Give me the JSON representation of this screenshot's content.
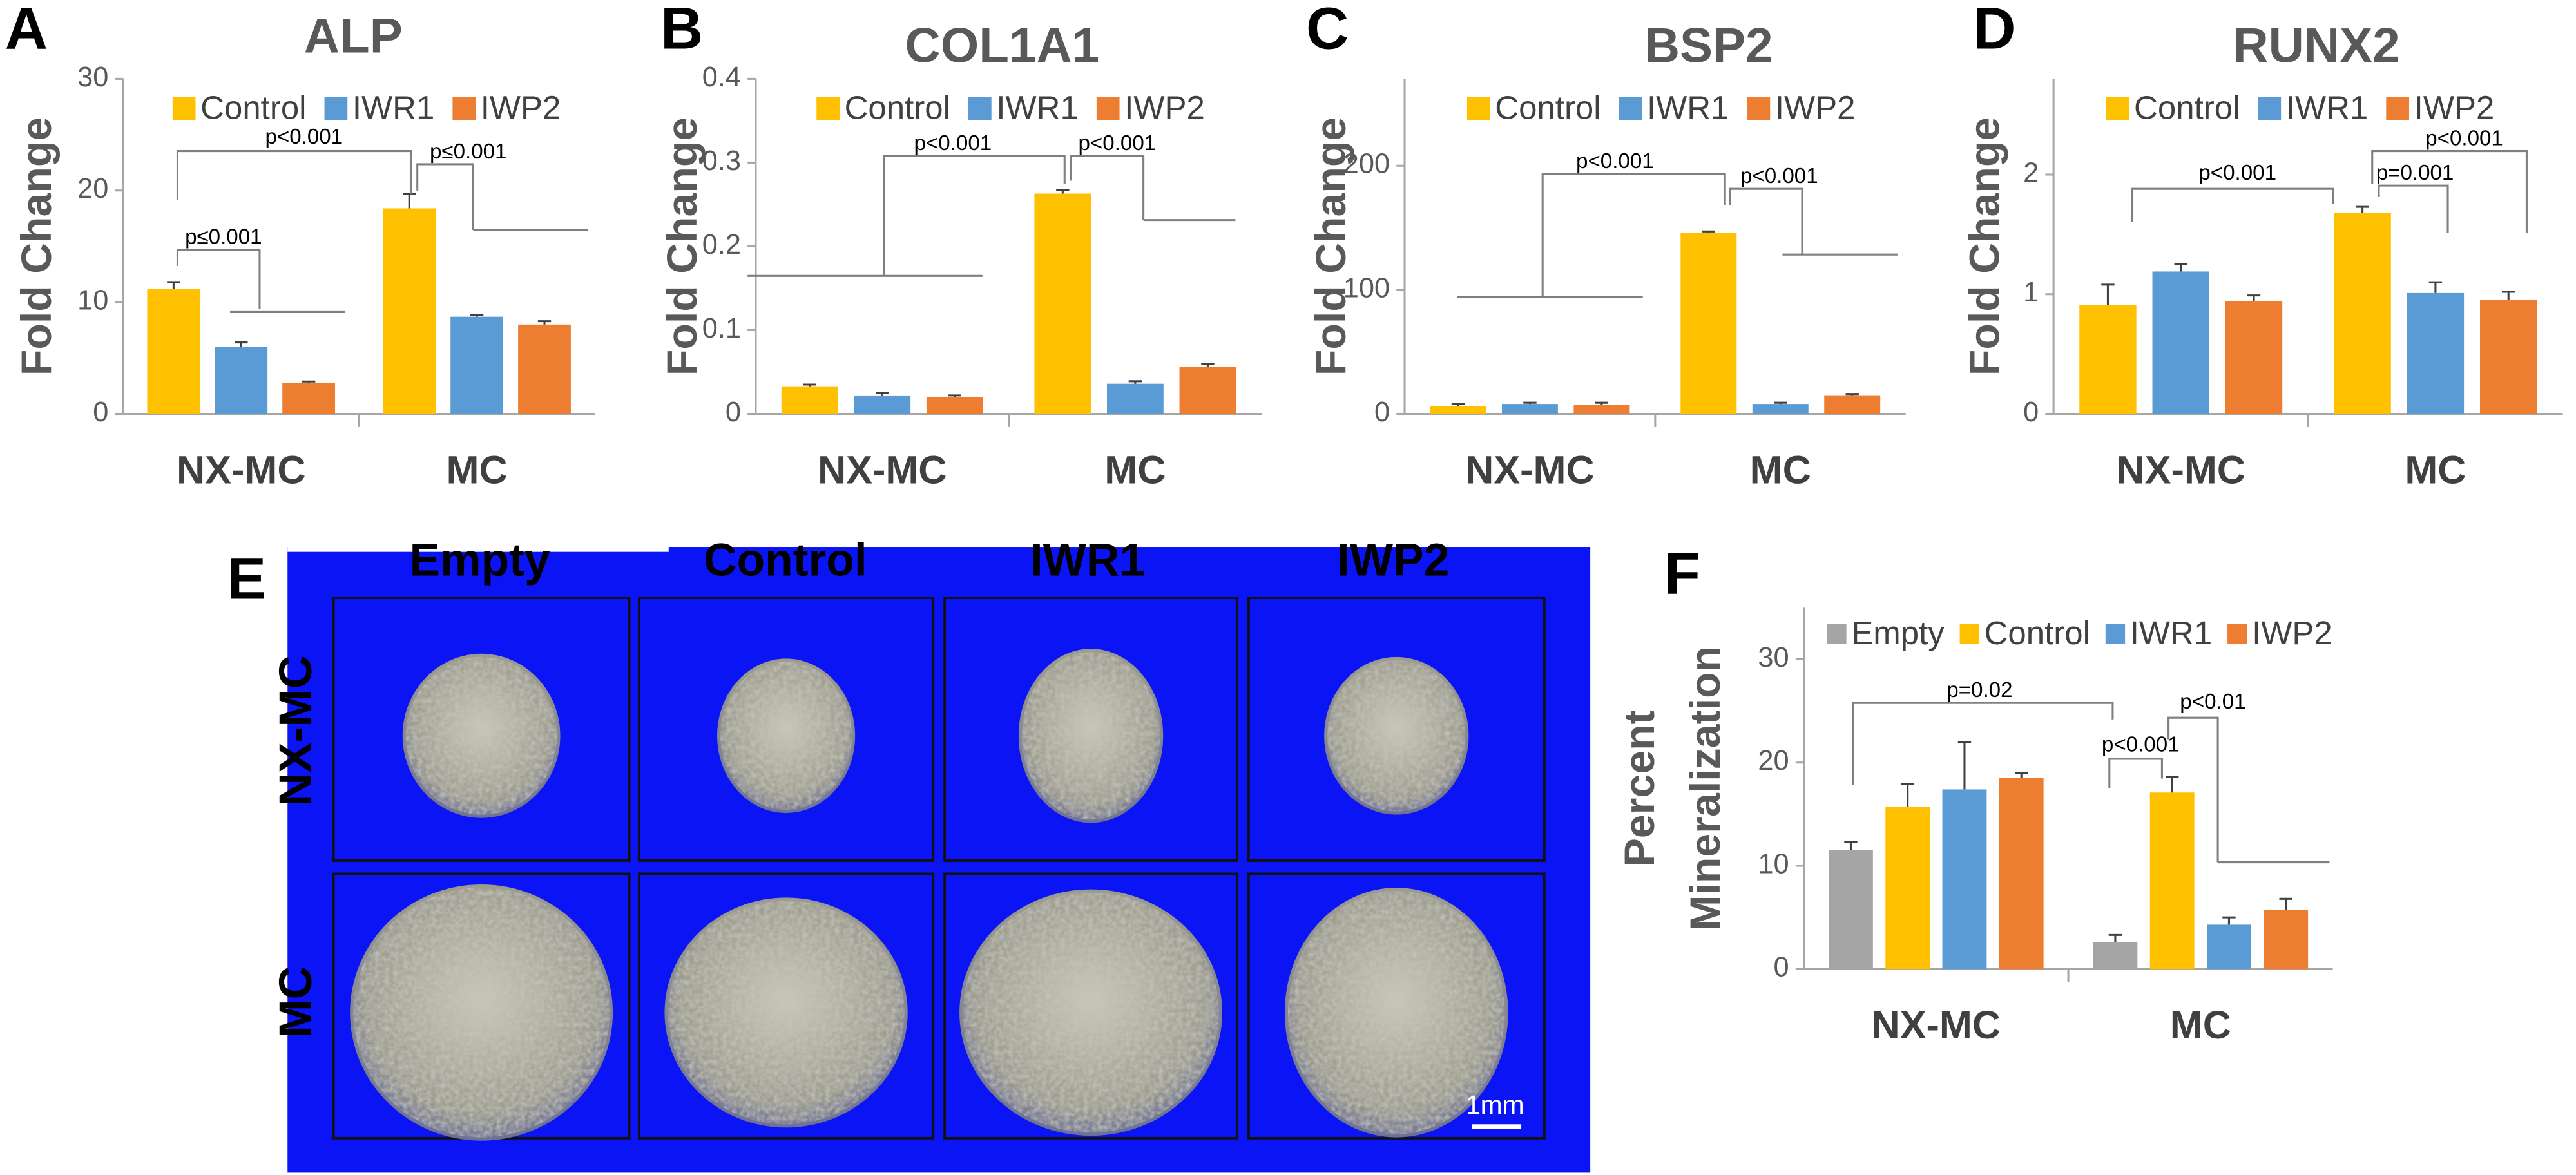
{
  "chart_data": [
    {
      "type": "bar",
      "panel": "A",
      "title": "ALP",
      "y_label": "Fold Change",
      "categories": [
        "NX-MC",
        "MC"
      ],
      "series": [
        {
          "name": "Control",
          "color": "#ffc000",
          "values": [
            11.2,
            18.4
          ],
          "errors": [
            0.6,
            1.3
          ]
        },
        {
          "name": "IWR1",
          "color": "#5b9bd5",
          "values": [
            6.0,
            8.7
          ],
          "errors": [
            0.4,
            0.15
          ]
        },
        {
          "name": "IWP2",
          "color": "#ed7d31",
          "values": [
            2.8,
            8.0
          ],
          "errors": [
            0.1,
            0.3
          ]
        }
      ],
      "ylim": [
        0,
        30
      ],
      "yticks": [
        0,
        10,
        20,
        30
      ],
      "grid": false,
      "annotations": [
        "p≤0.001",
        "p<0.001",
        "p≤0.001"
      ]
    },
    {
      "type": "bar",
      "panel": "B",
      "title": "COL1A1",
      "y_label": "Fold Change",
      "categories": [
        "NX-MC",
        "MC"
      ],
      "series": [
        {
          "name": "Control",
          "color": "#ffc000",
          "values": [
            0.033,
            0.263
          ],
          "errors": [
            0.002,
            0.004
          ]
        },
        {
          "name": "IWR1",
          "color": "#5b9bd5",
          "values": [
            0.022,
            0.036
          ],
          "errors": [
            0.003,
            0.003
          ]
        },
        {
          "name": "IWP2",
          "color": "#ed7d31",
          "values": [
            0.02,
            0.056
          ],
          "errors": [
            0.002,
            0.004
          ]
        }
      ],
      "ylim": [
        0,
        0.4
      ],
      "yticks": [
        0,
        0.1,
        0.2,
        0.3,
        0.4
      ],
      "grid": false,
      "annotations": [
        "p<0.001",
        "p<0.001"
      ]
    },
    {
      "type": "bar",
      "panel": "C",
      "title": "BSP2",
      "y_label": "Fold Change",
      "categories": [
        "NX-MC",
        "MC"
      ],
      "series": [
        {
          "name": "Control",
          "color": "#ffc000",
          "values": [
            6,
            146
          ],
          "errors": [
            2,
            1
          ]
        },
        {
          "name": "IWR1",
          "color": "#5b9bd5",
          "values": [
            8,
            8
          ],
          "errors": [
            1,
            1
          ]
        },
        {
          "name": "IWP2",
          "color": "#ed7d31",
          "values": [
            7,
            15
          ],
          "errors": [
            2,
            1
          ]
        }
      ],
      "ylim": [
        0,
        270
      ],
      "yticks": [
        0,
        100,
        200
      ],
      "grid": false,
      "annotations": [
        "p<0.001",
        "p<0.001"
      ]
    },
    {
      "type": "bar",
      "panel": "D",
      "title": "RUNX2",
      "y_label": "Fold Change",
      "categories": [
        "NX-MC",
        "MC"
      ],
      "series": [
        {
          "name": "Control",
          "color": "#ffc000",
          "values": [
            0.91,
            1.68
          ],
          "errors": [
            0.17,
            0.05
          ]
        },
        {
          "name": "IWR1",
          "color": "#5b9bd5",
          "values": [
            1.19,
            1.01
          ],
          "errors": [
            0.06,
            0.09
          ]
        },
        {
          "name": "IWP2",
          "color": "#ed7d31",
          "values": [
            0.94,
            0.95
          ],
          "errors": [
            0.05,
            0.07
          ]
        }
      ],
      "ylim": [
        0,
        2.8
      ],
      "yticks": [
        0,
        1,
        2
      ],
      "grid": false,
      "annotations": [
        "p<0.001",
        "p=0.001",
        "p<0.001"
      ]
    },
    {
      "type": "bar",
      "panel": "F",
      "y_label": [
        "Percent",
        "Mineralization"
      ],
      "categories": [
        "NX-MC",
        "MC"
      ],
      "series": [
        {
          "name": "Empty",
          "color": "#a5a5a5",
          "values": [
            11.5,
            2.6
          ],
          "errors": [
            0.8,
            0.7
          ]
        },
        {
          "name": "Control",
          "color": "#ffc000",
          "values": [
            15.7,
            17.1
          ],
          "errors": [
            2.2,
            1.5
          ]
        },
        {
          "name": "IWR1",
          "color": "#5b9bd5",
          "values": [
            17.4,
            4.3
          ],
          "errors": [
            4.6,
            0.7
          ]
        },
        {
          "name": "IWP2",
          "color": "#ed7d31",
          "values": [
            18.5,
            5.7
          ],
          "errors": [
            0.5,
            1.1
          ]
        }
      ],
      "ylim": [
        0,
        35
      ],
      "yticks": [
        0,
        10,
        20,
        30
      ],
      "grid": false,
      "annotations": [
        "p=0.02",
        "p<0.001",
        "p<0.01"
      ]
    }
  ],
  "image_panel": {
    "panel": "E",
    "columns": [
      "Empty",
      "Control",
      "IWR1",
      "IWP2"
    ],
    "rows": [
      "NX-MC",
      "MC"
    ],
    "scale_bar": "1mm"
  }
}
